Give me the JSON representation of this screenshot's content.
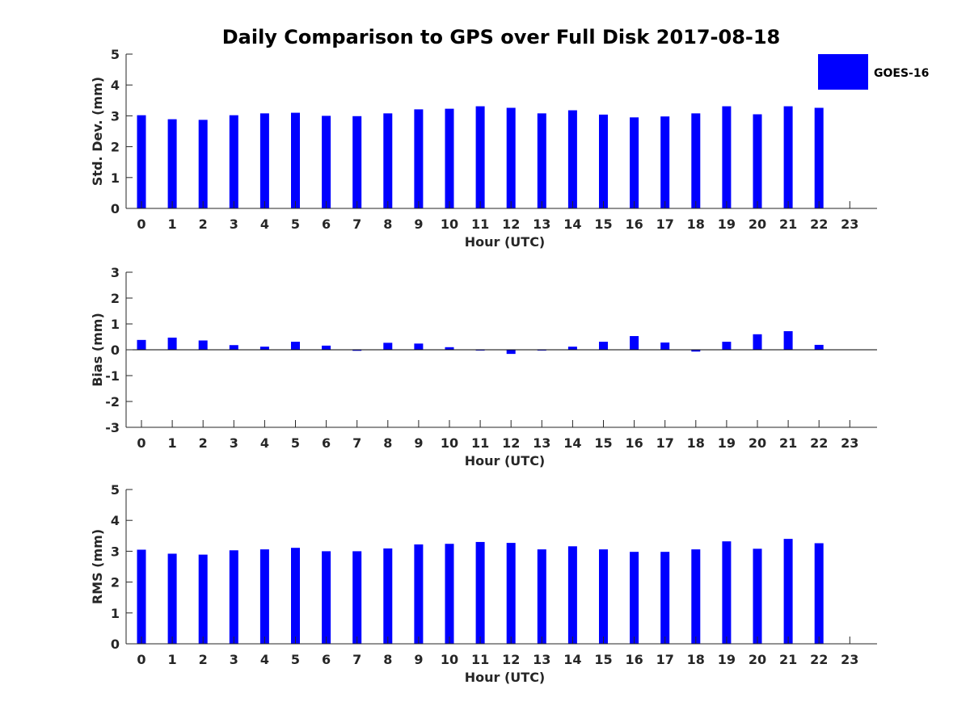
{
  "figure_title": "Daily Comparison to GPS over Full Disk 2017-08-18",
  "legend": {
    "label": "GOES-16",
    "color": "#0000ff"
  },
  "bar_color": "#0000ff",
  "chart_data": [
    {
      "type": "bar",
      "title": "Daily Comparison to GPS over Full Disk 2017-08-18",
      "xlabel": "Hour (UTC)",
      "ylabel": "Std. Dev. (mm)",
      "ylim": [
        0,
        5
      ],
      "yticks": [
        0,
        1,
        2,
        3,
        4,
        5
      ],
      "categories": [
        "0",
        "1",
        "2",
        "3",
        "4",
        "5",
        "6",
        "7",
        "8",
        "9",
        "10",
        "11",
        "12",
        "13",
        "14",
        "15",
        "16",
        "17",
        "18",
        "19",
        "20",
        "21",
        "22",
        "23"
      ],
      "series": [
        {
          "name": "GOES-16",
          "values": [
            3.02,
            2.89,
            2.87,
            3.02,
            3.08,
            3.1,
            3.0,
            2.99,
            3.08,
            3.21,
            3.23,
            3.31,
            3.26,
            3.08,
            3.18,
            3.04,
            2.95,
            2.98,
            3.08,
            3.31,
            3.05,
            3.31,
            3.26,
            null
          ]
        }
      ]
    },
    {
      "type": "bar",
      "xlabel": "Hour (UTC)",
      "ylabel": "Bias (mm)",
      "ylim": [
        -3,
        3
      ],
      "yticks": [
        -3,
        -2,
        -1,
        0,
        1,
        2,
        3
      ],
      "categories": [
        "0",
        "1",
        "2",
        "3",
        "4",
        "5",
        "6",
        "7",
        "8",
        "9",
        "10",
        "11",
        "12",
        "13",
        "14",
        "15",
        "16",
        "17",
        "18",
        "19",
        "20",
        "21",
        "22",
        "23"
      ],
      "series": [
        {
          "name": "GOES-16",
          "values": [
            0.38,
            0.47,
            0.36,
            0.18,
            0.12,
            0.31,
            0.16,
            -0.04,
            0.27,
            0.24,
            0.1,
            -0.03,
            -0.16,
            -0.03,
            0.12,
            0.31,
            0.53,
            0.28,
            -0.07,
            0.31,
            0.6,
            0.72,
            0.19,
            null
          ]
        }
      ]
    },
    {
      "type": "bar",
      "xlabel": "Hour (UTC)",
      "ylabel": "RMS (mm)",
      "ylim": [
        0,
        5
      ],
      "yticks": [
        0,
        1,
        2,
        3,
        4,
        5
      ],
      "categories": [
        "0",
        "1",
        "2",
        "3",
        "4",
        "5",
        "6",
        "7",
        "8",
        "9",
        "10",
        "11",
        "12",
        "13",
        "14",
        "15",
        "16",
        "17",
        "18",
        "19",
        "20",
        "21",
        "22",
        "23"
      ],
      "series": [
        {
          "name": "GOES-16",
          "values": [
            3.05,
            2.92,
            2.89,
            3.03,
            3.06,
            3.11,
            3.0,
            3.0,
            3.09,
            3.22,
            3.24,
            3.3,
            3.27,
            3.06,
            3.16,
            3.06,
            2.98,
            2.98,
            3.06,
            3.32,
            3.08,
            3.4,
            3.26,
            null
          ]
        }
      ]
    }
  ]
}
